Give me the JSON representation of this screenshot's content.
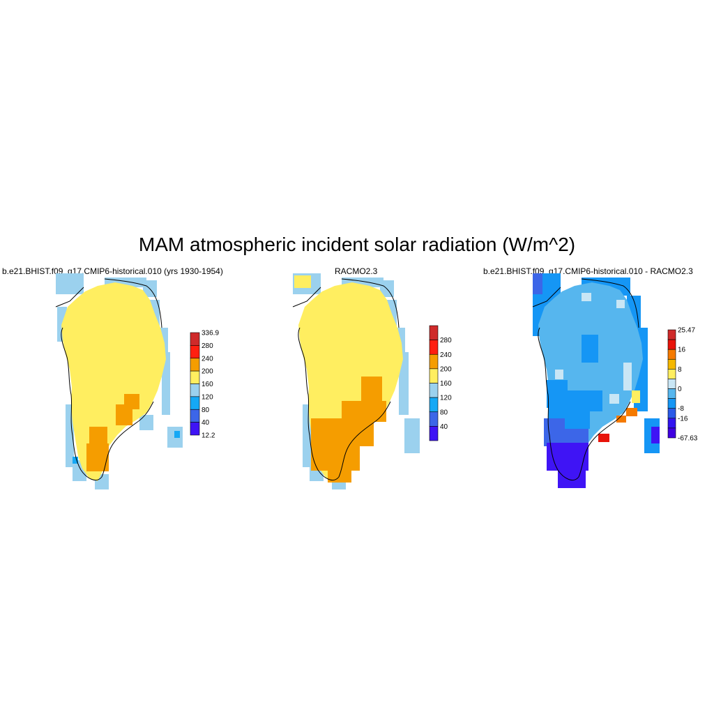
{
  "title": "MAM atmospheric incident solar radiation (W/m^2)",
  "panels": [
    {
      "id": "model",
      "title": "b.e21.BHIST.f09_g17.CMIP6-historical.010 (yrs 1930-1954)",
      "colorbar": {
        "labels": [
          "336.9",
          "280",
          "240",
          "200",
          "160",
          "120",
          "80",
          "40",
          "12.2"
        ],
        "colors": [
          "#cf2a2a",
          "#ff1f10",
          "#f59d00",
          "#ffee60",
          "#9bd1ee",
          "#15a8f5",
          "#3c66e8",
          "#3f14f5"
        ]
      },
      "dominant_color": "#ffee60"
    },
    {
      "id": "obs",
      "title": "RACMO2.3",
      "colorbar": {
        "labels": [
          "280",
          "240",
          "200",
          "160",
          "120",
          "80",
          "40"
        ],
        "colors": [
          "#cf2a2a",
          "#ff1f10",
          "#f59d00",
          "#ffee60",
          "#9bd1ee",
          "#15a8f5",
          "#3c66e8",
          "#3f14f5"
        ]
      },
      "dominant_color": "#ffee60"
    },
    {
      "id": "diff",
      "title": "b.e21.BHIST.f09_g17.CMIP6-historical.010 - RACMO2.3",
      "colorbar": {
        "labels": [
          "25.47",
          "16",
          "8",
          "0",
          "-8",
          "-16",
          "-67.63"
        ],
        "colors": [
          "#cf2a2a",
          "#e8140a",
          "#f57a00",
          "#f5b800",
          "#ffee60",
          "#c9e6f5",
          "#56b6ee",
          "#1596f5",
          "#2a5ae8",
          "#3214f0",
          "#3f00e0"
        ]
      },
      "dominant_color": "#56b6ee"
    }
  ]
}
